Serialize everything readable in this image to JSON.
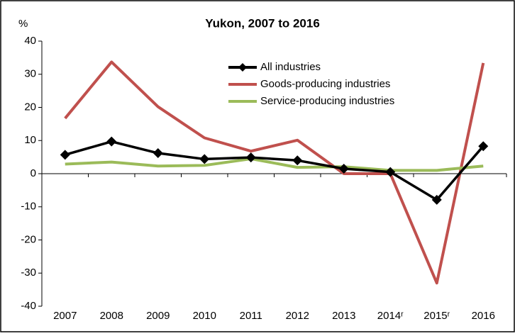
{
  "chart_data": {
    "type": "line",
    "title": "Yukon, 2007 to 2016",
    "y_label": "%",
    "categories": [
      "2007",
      "2008",
      "2009",
      "2010",
      "2011",
      "2012",
      "2013",
      "2014ʳ",
      "2015ʳ",
      "2016"
    ],
    "series": [
      {
        "name": "All industries",
        "color": "#000000",
        "marker": "diamond",
        "values": [
          5.7,
          9.7,
          6.2,
          4.4,
          4.9,
          4.0,
          1.5,
          0.5,
          -7.9,
          8.3
        ]
      },
      {
        "name": "Goods-producing industries",
        "color": "#c0504d",
        "values": [
          16.7,
          33.7,
          20.2,
          10.8,
          6.8,
          10.1,
          0,
          0,
          -33,
          33.4
        ]
      },
      {
        "name": "Service-producing industries",
        "color": "#9bbb59",
        "values": [
          2.9,
          3.5,
          2.3,
          2.5,
          4.5,
          1.9,
          2.1,
          1.0,
          1.0,
          2.3
        ]
      }
    ],
    "ylim": [
      -40,
      40
    ],
    "yticks": [
      -40,
      -30,
      -20,
      -10,
      0,
      10,
      20,
      30,
      40
    ]
  }
}
